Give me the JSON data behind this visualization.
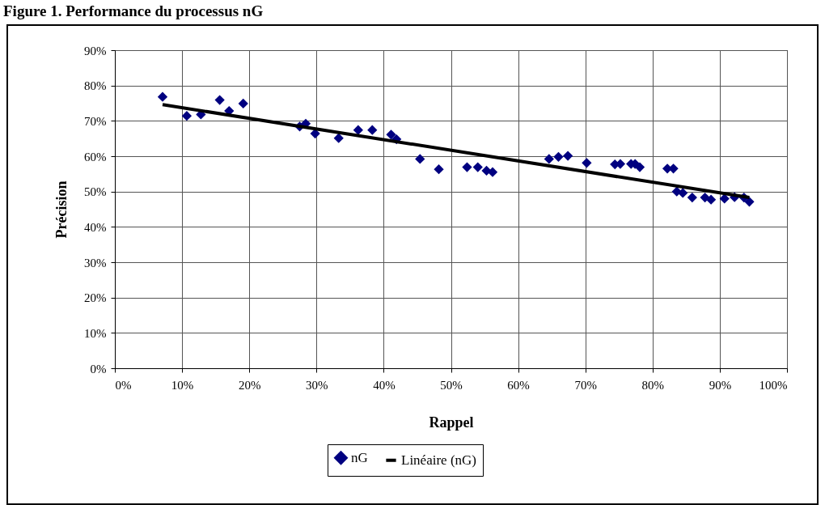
{
  "chart_data": {
    "type": "scatter",
    "title": "Figure 1. Performance du processus nG",
    "xlabel": "Rappel",
    "ylabel": "Précision",
    "series": [
      {
        "name": "nG",
        "color": "#000080",
        "marker": "diamond",
        "x": [
          7.1,
          10.7,
          12.8,
          15.6,
          17.0,
          19.1,
          27.5,
          28.4,
          29.8,
          33.3,
          36.2,
          38.3,
          41.1,
          41.9,
          45.4,
          48.2,
          52.4,
          54.0,
          55.3,
          56.2,
          64.6,
          66.0,
          67.4,
          70.2,
          74.4,
          75.2,
          76.8,
          77.4,
          78.1,
          82.2,
          83.1,
          83.6,
          84.5,
          85.9,
          87.8,
          88.7,
          90.7,
          92.2,
          93.6,
          94.4
        ],
        "values": [
          76.8,
          71.4,
          71.8,
          75.9,
          72.8,
          74.9,
          68.4,
          69.2,
          66.4,
          65.1,
          67.4,
          67.4,
          66.1,
          64.8,
          59.2,
          56.3,
          56.9,
          56.9,
          55.9,
          55.5,
          59.2,
          59.8,
          60.1,
          58.1,
          57.7,
          57.8,
          57.8,
          57.8,
          56.9,
          56.5,
          56.5,
          50.0,
          49.6,
          48.3,
          48.3,
          47.7,
          48.0,
          48.4,
          48.3,
          47.1
        ]
      },
      {
        "name": "Linéaire (nG)",
        "type": "line",
        "color": "#000000",
        "x": [
          7.1,
          94.4
        ],
        "values": [
          74.6,
          48.3
        ]
      }
    ],
    "xlim": [
      0,
      100
    ],
    "ylim": [
      0,
      90
    ],
    "xticks": [
      {
        "value": 0,
        "label": "0%"
      },
      {
        "value": 10,
        "label": "10%"
      },
      {
        "value": 20,
        "label": "20%"
      },
      {
        "value": 30,
        "label": "30%"
      },
      {
        "value": 40,
        "label": "40%"
      },
      {
        "value": 50,
        "label": "50%"
      },
      {
        "value": 60,
        "label": "60%"
      },
      {
        "value": 70,
        "label": "70%"
      },
      {
        "value": 80,
        "label": "80%"
      },
      {
        "value": 90,
        "label": "90%"
      },
      {
        "value": 100,
        "label": "100%"
      }
    ],
    "yticks": [
      {
        "value": 0,
        "label": "0%"
      },
      {
        "value": 10,
        "label": "10%"
      },
      {
        "value": 20,
        "label": "20%"
      },
      {
        "value": 30,
        "label": "30%"
      },
      {
        "value": 40,
        "label": "40%"
      },
      {
        "value": 50,
        "label": "50%"
      },
      {
        "value": 60,
        "label": "60%"
      },
      {
        "value": 70,
        "label": "70%"
      },
      {
        "value": 80,
        "label": "80%"
      },
      {
        "value": 90,
        "label": "90%"
      }
    ],
    "grid": true,
    "legend": "bottom"
  }
}
